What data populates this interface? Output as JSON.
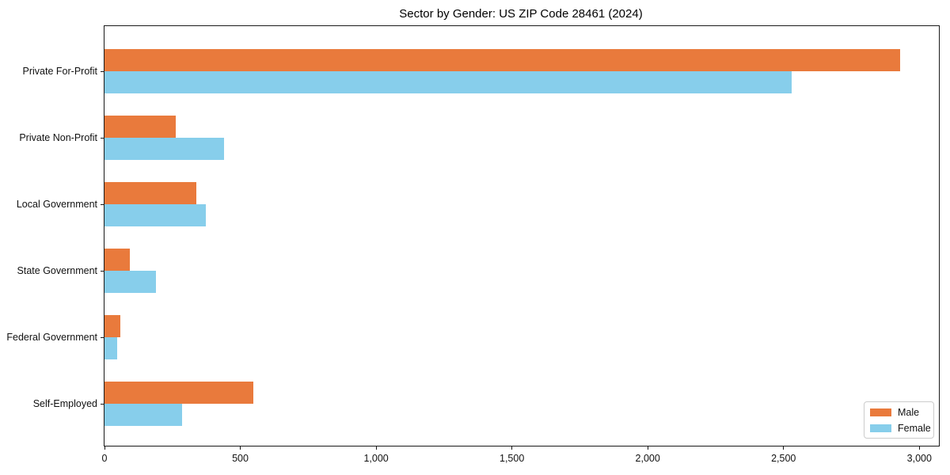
{
  "chart_data": {
    "type": "bar",
    "orientation": "horizontal",
    "title": "Sector by Gender: US ZIP Code 28461 (2024)",
    "categories": [
      "Private For-Profit",
      "Private Non-Profit",
      "Local Government",
      "State Government",
      "Federal Government",
      "Self-Employed"
    ],
    "series": [
      {
        "name": "Male",
        "color": "#E97A3C",
        "values": [
          2930,
          262,
          339,
          93,
          57,
          548
        ]
      },
      {
        "name": "Female",
        "color": "#87CEEB",
        "values": [
          2530,
          441,
          374,
          188,
          46,
          286
        ]
      }
    ],
    "xlabel": "",
    "ylabel": "",
    "xlim": [
      0,
      3072
    ],
    "x_ticks": [
      {
        "value": 0,
        "label": "0"
      },
      {
        "value": 500,
        "label": "500"
      },
      {
        "value": 1000,
        "label": "1,000"
      },
      {
        "value": 1500,
        "label": "1,500"
      },
      {
        "value": 2000,
        "label": "2,000"
      },
      {
        "value": 2500,
        "label": "2,500"
      },
      {
        "value": 3000,
        "label": "3,000"
      }
    ],
    "grid": false,
    "legend": {
      "position": "lower right"
    }
  },
  "colors": {
    "spine": "#1a1a1a",
    "background": "#ffffff"
  }
}
